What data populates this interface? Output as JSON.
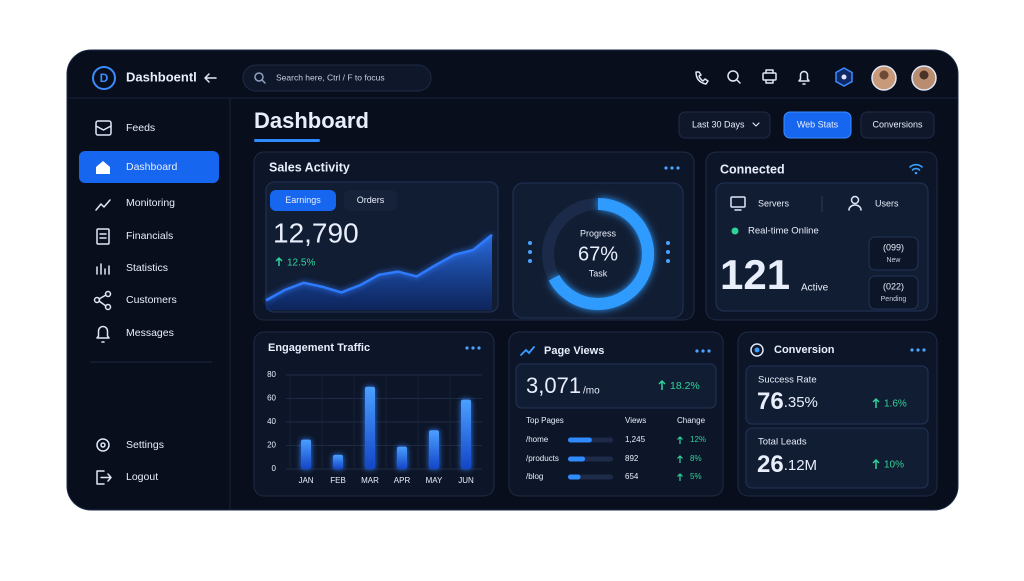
{
  "header": {
    "brand": "Dashboentl",
    "search": "Search here,  Ctrl / F to focus"
  },
  "sidebar": {
    "items": [
      "Feeds",
      "Dashboard",
      "Monitoring",
      "Financials",
      "Statistics",
      "Customers",
      "Messages"
    ],
    "footer": [
      "Settings",
      "Logout"
    ]
  },
  "page": {
    "title": "Dashboard",
    "filters": [
      "Last 30 Days",
      "Web Stats",
      "Conversions"
    ]
  },
  "sales_activity": {
    "title": "Sales Activity",
    "tabs": [
      "Earnings",
      "Orders"
    ],
    "value": "12,790",
    "change": "12.5%",
    "trend": {
      "type": "area",
      "values": [
        12,
        25,
        34,
        29,
        22,
        31,
        44,
        48,
        42,
        56,
        69,
        75,
        94
      ],
      "ylim": [
        0,
        100
      ],
      "color": "#2f7bff"
    }
  },
  "progress": {
    "label": "Progress",
    "value": 67,
    "value_label": "67%",
    "caption": "Task"
  },
  "connected": {
    "title": "Connected",
    "servers": "Servers",
    "users": "Users",
    "status": "Real-time Online",
    "count": "121",
    "count_label": "Active",
    "new_count": "(099)",
    "new_label": "New",
    "pending_count": "(022)",
    "pending_label": "Pending"
  },
  "engagement": {
    "title": "Engagement Traffic",
    "chart_data": {
      "type": "bar",
      "categories": [
        "JAN",
        "FEB",
        "MAR",
        "APR",
        "MAY",
        "JUN"
      ],
      "values": [
        25,
        12,
        70,
        19,
        33,
        59
      ],
      "ylim": [
        0,
        80
      ],
      "yticks": [
        0,
        20,
        40,
        60,
        80
      ],
      "grid": true,
      "color": "#2f7bff"
    }
  },
  "page_views": {
    "title": "Page Views",
    "value": "3,071",
    "unit": "/mo",
    "change": "18.2%",
    "columns": [
      "Top Pages",
      "Views",
      "Change"
    ],
    "rows": [
      {
        "page": "/home",
        "views": 1245,
        "views_label": "1,245",
        "change": "12%"
      },
      {
        "page": "/products",
        "views": 892,
        "views_label": "892",
        "change": "8%"
      },
      {
        "page": "/blog",
        "views": 654,
        "views_label": "654",
        "change": "5%"
      }
    ]
  },
  "conversion": {
    "title": "Conversion",
    "rate_label": "Success Rate",
    "rate_main": "76",
    "rate_sub": ".35%",
    "rate_change": "1.6%",
    "leads_label": "Total Leads",
    "leads_main": "26",
    "leads_sub": ".12M",
    "leads_change": "10%"
  }
}
